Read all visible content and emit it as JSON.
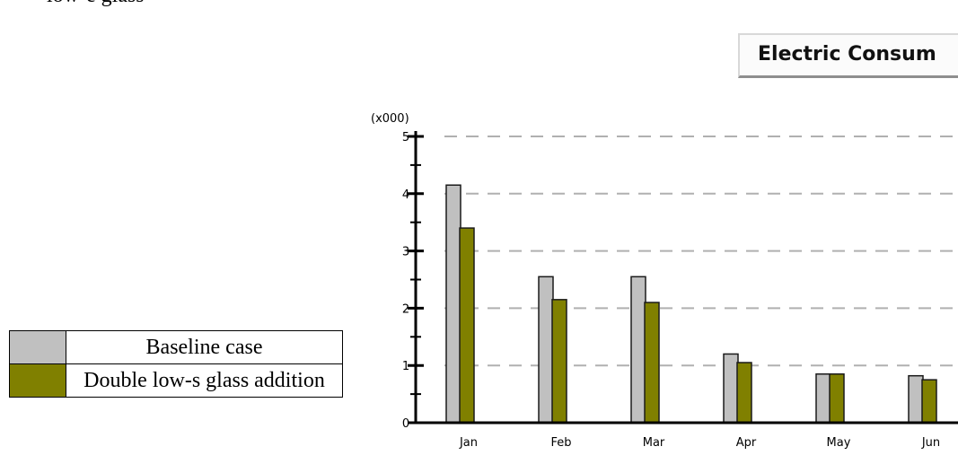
{
  "page": {
    "top_text": "low-e glass"
  },
  "chart_data": {
    "type": "bar",
    "title": "Electric Consum",
    "y_unit_label": "(x000)",
    "categories": [
      "Jan",
      "Feb",
      "Mar",
      "Apr",
      "May",
      "Jun"
    ],
    "series": [
      {
        "name": "Baseline case",
        "color": "#c0c0c0",
        "values": [
          4.15,
          2.55,
          2.55,
          1.2,
          0.85,
          0.82
        ]
      },
      {
        "name": "Double low-s glass addition",
        "color": "#808000",
        "values": [
          3.4,
          2.15,
          2.1,
          1.05,
          0.85,
          0.75
        ]
      }
    ],
    "y_ticks": [
      "0",
      "1",
      "2",
      "3",
      "4",
      "5"
    ],
    "ylim": [
      0,
      5
    ],
    "grid": true
  }
}
